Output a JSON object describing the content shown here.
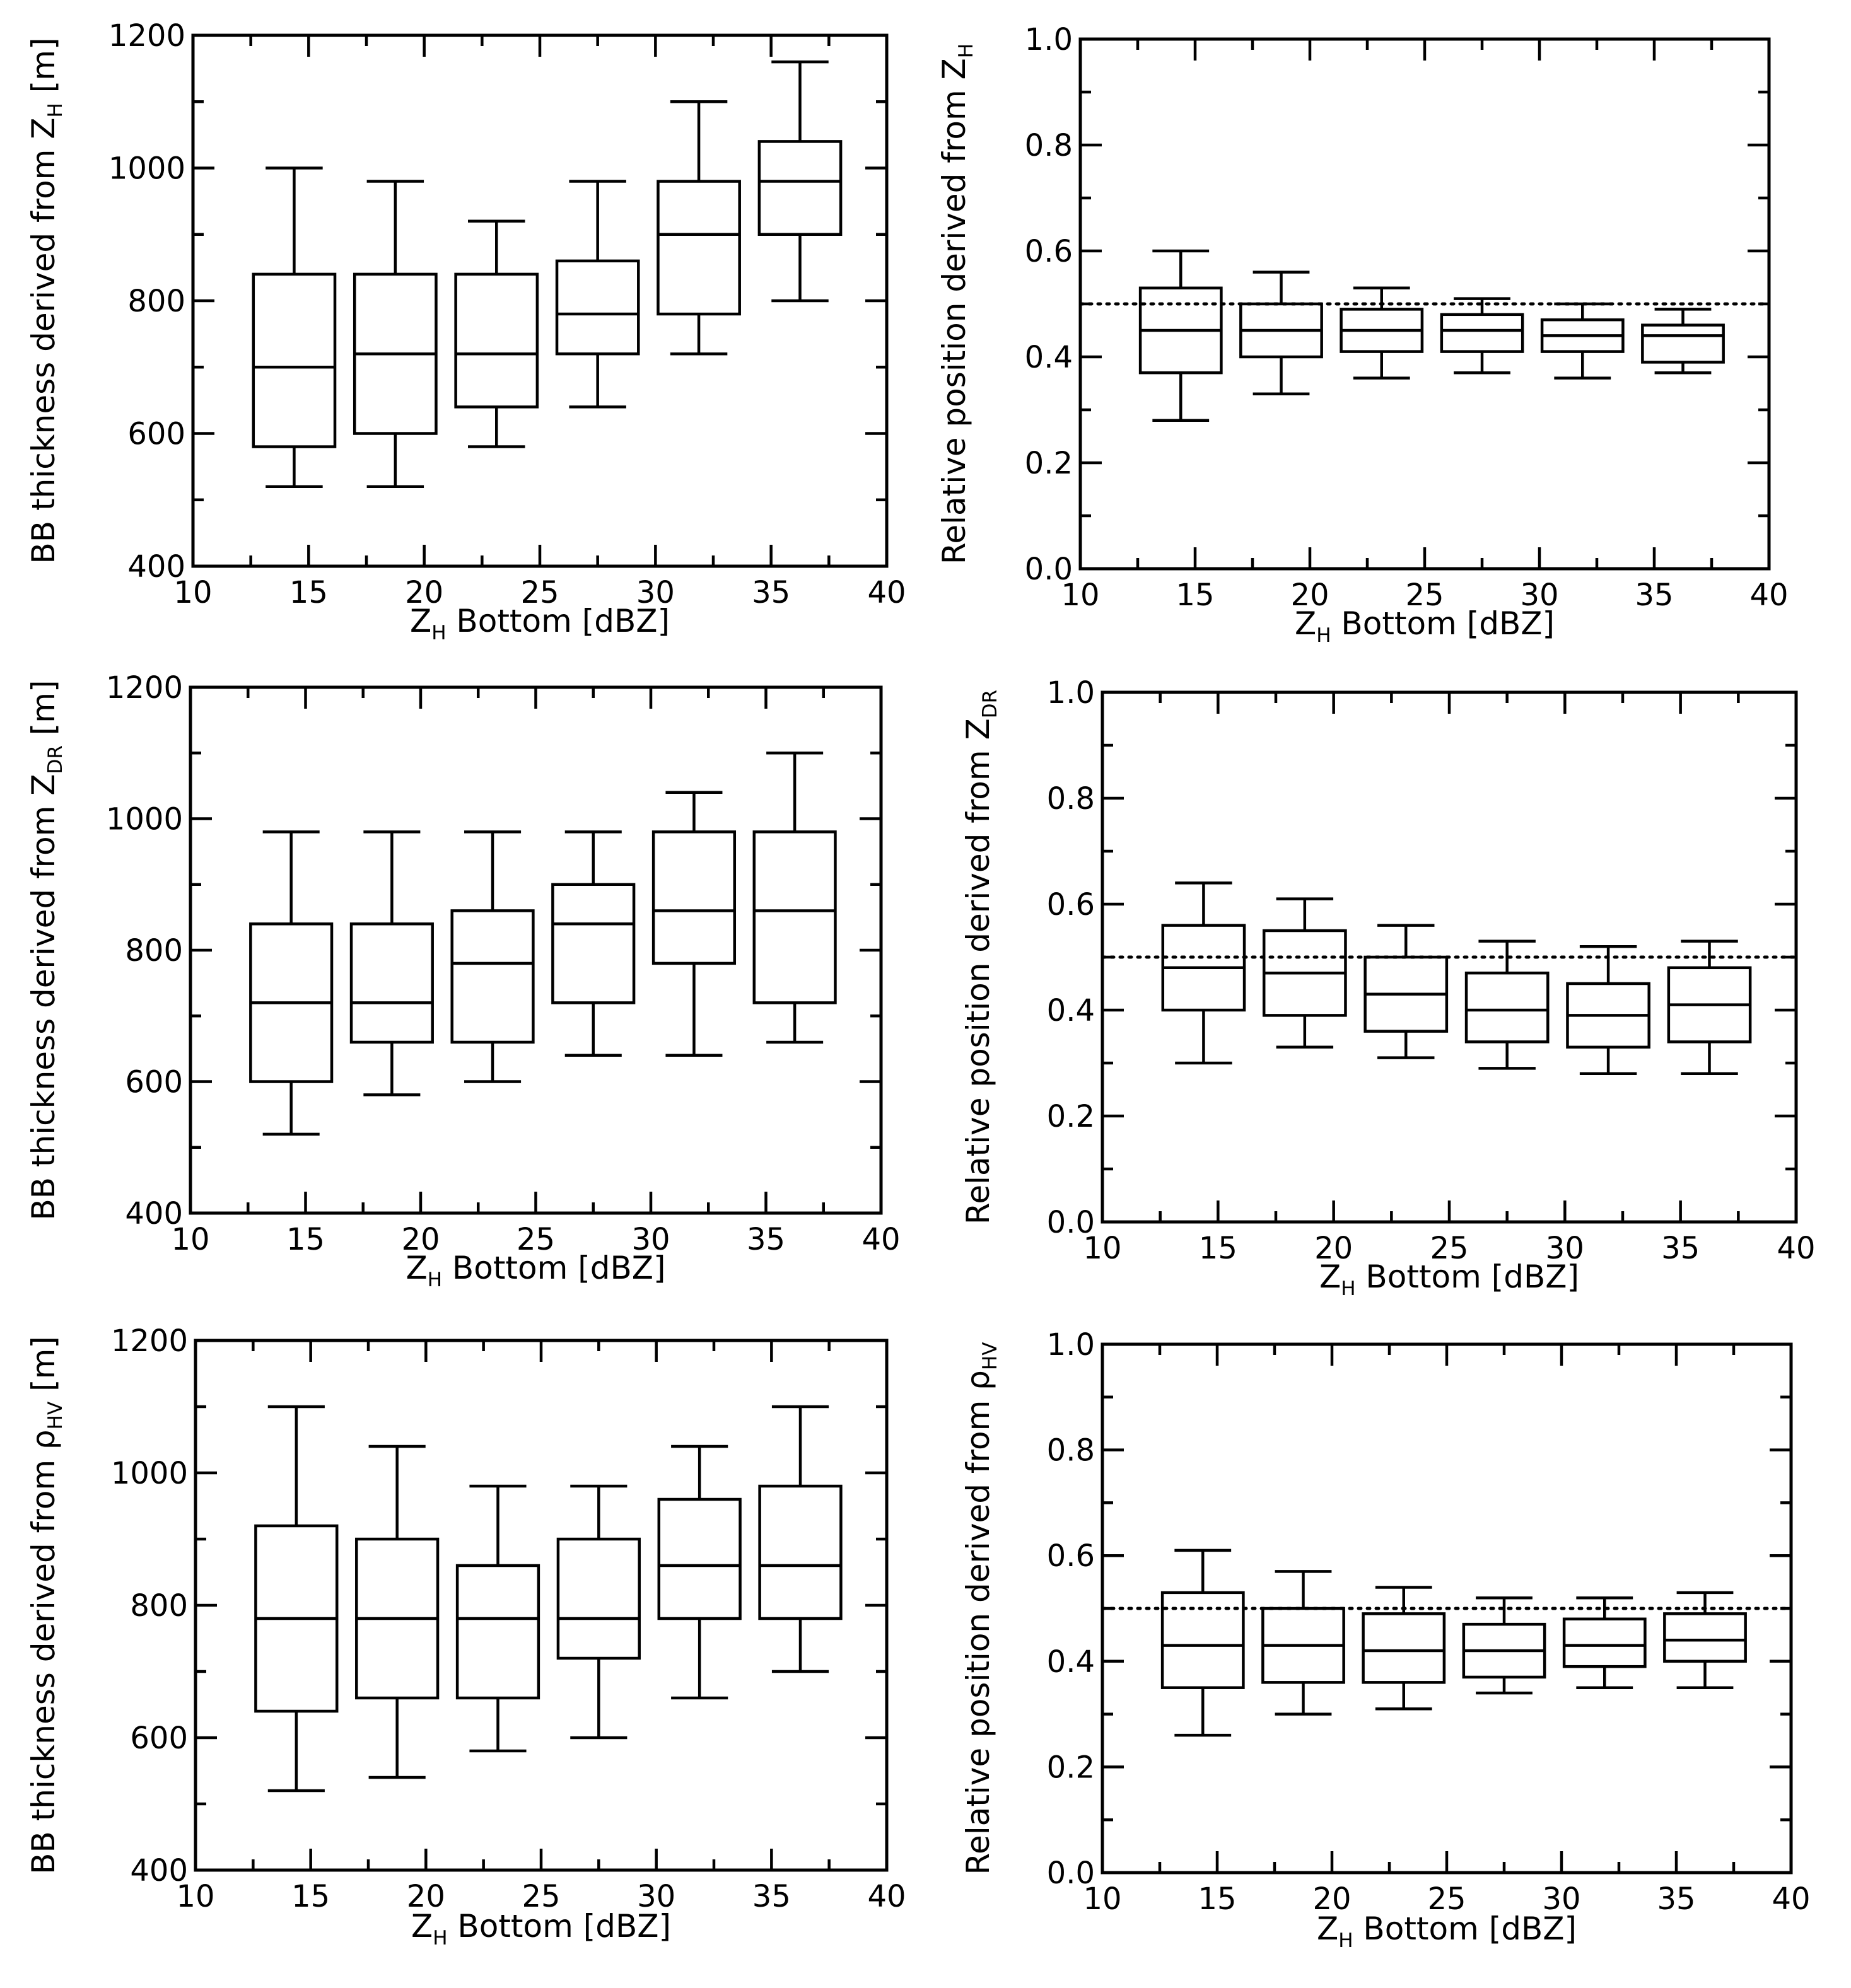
{
  "chart_data": [
    {
      "id": "bb-thickness-zh",
      "type": "boxplot",
      "xlabel": {
        "main": "Z",
        "sub": "H",
        "rest": " Bottom [dBZ]"
      },
      "ylabel": {
        "main": "BB thickness derived from Z",
        "sub": "H",
        "rest": " [m]"
      },
      "xlim": [
        10,
        40
      ],
      "ylim": [
        400,
        1200
      ],
      "xticks": [
        10,
        15,
        20,
        25,
        30,
        35,
        40
      ],
      "yticks": [
        400,
        600,
        800,
        1000,
        1200
      ],
      "xtick_labels": [
        "10",
        "15",
        "20",
        "25",
        "30",
        "35",
        "40"
      ],
      "ytick_labels": [
        "400",
        "600",
        "800",
        "1000",
        "1200"
      ],
      "y_minor_step": 100,
      "boxes": [
        {
          "x": 14.375,
          "whislo": 520,
          "q1": 580,
          "med": 700,
          "q3": 840,
          "whishi": 1000
        },
        {
          "x": 18.75,
          "whislo": 520,
          "q1": 600,
          "med": 720,
          "q3": 840,
          "whishi": 980
        },
        {
          "x": 23.125,
          "whislo": 580,
          "q1": 640,
          "med": 720,
          "q3": 840,
          "whishi": 920
        },
        {
          "x": 27.5,
          "whislo": 640,
          "q1": 720,
          "med": 780,
          "q3": 860,
          "whishi": 980
        },
        {
          "x": 31.875,
          "whislo": 720,
          "q1": 780,
          "med": 900,
          "q3": 980,
          "whishi": 1100
        },
        {
          "x": 36.25,
          "whislo": 800,
          "q1": 900,
          "med": 980,
          "q3": 1040,
          "whishi": 1160
        }
      ]
    },
    {
      "id": "relative-position-zh",
      "type": "boxplot",
      "xlabel": {
        "main": "Z",
        "sub": "H",
        "rest": " Bottom [dBZ]"
      },
      "ylabel": {
        "main": "Relative position derived from Z",
        "sub": "H",
        "rest": ""
      },
      "xlim": [
        10,
        40
      ],
      "ylim": [
        0.0,
        1.0
      ],
      "xticks": [
        10,
        15,
        20,
        25,
        30,
        35,
        40
      ],
      "yticks": [
        0.0,
        0.2,
        0.4,
        0.6,
        0.8,
        1.0
      ],
      "xtick_labels": [
        "10",
        "15",
        "20",
        "25",
        "30",
        "35",
        "40"
      ],
      "ytick_labels": [
        "0.0",
        "0.2",
        "0.4",
        "0.6",
        "0.8",
        "1.0"
      ],
      "y_minor_step": 0.1,
      "reference_line": 0.5,
      "boxes": [
        {
          "x": 14.375,
          "whislo": 0.28,
          "q1": 0.37,
          "med": 0.45,
          "q3": 0.53,
          "whishi": 0.6
        },
        {
          "x": 18.75,
          "whislo": 0.33,
          "q1": 0.4,
          "med": 0.45,
          "q3": 0.5,
          "whishi": 0.56
        },
        {
          "x": 23.125,
          "whislo": 0.36,
          "q1": 0.41,
          "med": 0.45,
          "q3": 0.49,
          "whishi": 0.53
        },
        {
          "x": 27.5,
          "whislo": 0.37,
          "q1": 0.41,
          "med": 0.45,
          "q3": 0.48,
          "whishi": 0.51
        },
        {
          "x": 31.875,
          "whislo": 0.36,
          "q1": 0.41,
          "med": 0.44,
          "q3": 0.47,
          "whishi": 0.5
        },
        {
          "x": 36.25,
          "whislo": 0.37,
          "q1": 0.39,
          "med": 0.44,
          "q3": 0.46,
          "whishi": 0.49
        }
      ]
    },
    {
      "id": "bb-thickness-zdr",
      "type": "boxplot",
      "xlabel": {
        "main": "Z",
        "sub": "H",
        "rest": " Bottom [dBZ]"
      },
      "ylabel": {
        "main": "BB thickness derived from Z",
        "sub": "DR",
        "rest": " [m]"
      },
      "xlim": [
        10,
        40
      ],
      "ylim": [
        400,
        1200
      ],
      "xticks": [
        10,
        15,
        20,
        25,
        30,
        35,
        40
      ],
      "yticks": [
        400,
        600,
        800,
        1000,
        1200
      ],
      "xtick_labels": [
        "10",
        "15",
        "20",
        "25",
        "30",
        "35",
        "40"
      ],
      "ytick_labels": [
        "400",
        "600",
        "800",
        "1000",
        "1200"
      ],
      "y_minor_step": 100,
      "boxes": [
        {
          "x": 14.375,
          "whislo": 520,
          "q1": 600,
          "med": 720,
          "q3": 840,
          "whishi": 980
        },
        {
          "x": 18.75,
          "whislo": 580,
          "q1": 660,
          "med": 720,
          "q3": 840,
          "whishi": 980
        },
        {
          "x": 23.125,
          "whislo": 600,
          "q1": 660,
          "med": 780,
          "q3": 860,
          "whishi": 980
        },
        {
          "x": 27.5,
          "whislo": 640,
          "q1": 720,
          "med": 840,
          "q3": 900,
          "whishi": 980
        },
        {
          "x": 31.875,
          "whislo": 640,
          "q1": 780,
          "med": 860,
          "q3": 980,
          "whishi": 1040
        },
        {
          "x": 36.25,
          "whislo": 660,
          "q1": 720,
          "med": 860,
          "q3": 980,
          "whishi": 1100
        }
      ]
    },
    {
      "id": "relative-position-zdr",
      "type": "boxplot",
      "xlabel": {
        "main": "Z",
        "sub": "H",
        "rest": " Bottom [dBZ]"
      },
      "ylabel": {
        "main": "Relative position derived from Z",
        "sub": "DR",
        "rest": ""
      },
      "xlim": [
        10,
        40
      ],
      "ylim": [
        0.0,
        1.0
      ],
      "xticks": [
        10,
        15,
        20,
        25,
        30,
        35,
        40
      ],
      "yticks": [
        0.0,
        0.2,
        0.4,
        0.6,
        0.8,
        1.0
      ],
      "xtick_labels": [
        "10",
        "15",
        "20",
        "25",
        "30",
        "35",
        "40"
      ],
      "ytick_labels": [
        "0.0",
        "0.2",
        "0.4",
        "0.6",
        "0.8",
        "1.0"
      ],
      "y_minor_step": 0.1,
      "reference_line": 0.5,
      "boxes": [
        {
          "x": 14.375,
          "whislo": 0.3,
          "q1": 0.4,
          "med": 0.48,
          "q3": 0.56,
          "whishi": 0.64
        },
        {
          "x": 18.75,
          "whislo": 0.33,
          "q1": 0.39,
          "med": 0.47,
          "q3": 0.55,
          "whishi": 0.61
        },
        {
          "x": 23.125,
          "whislo": 0.31,
          "q1": 0.36,
          "med": 0.43,
          "q3": 0.5,
          "whishi": 0.56
        },
        {
          "x": 27.5,
          "whislo": 0.29,
          "q1": 0.34,
          "med": 0.4,
          "q3": 0.47,
          "whishi": 0.53
        },
        {
          "x": 31.875,
          "whislo": 0.28,
          "q1": 0.33,
          "med": 0.39,
          "q3": 0.45,
          "whishi": 0.52
        },
        {
          "x": 36.25,
          "whislo": 0.28,
          "q1": 0.34,
          "med": 0.41,
          "q3": 0.48,
          "whishi": 0.53
        }
      ]
    },
    {
      "id": "bb-thickness-rhohv",
      "type": "boxplot",
      "xlabel": {
        "main": "Z",
        "sub": "H",
        "rest": " Bottom [dBZ]"
      },
      "ylabel": {
        "main": "BB thickness derived from ρ",
        "sub": "HV",
        "rest": " [m]"
      },
      "xlim": [
        10,
        40
      ],
      "ylim": [
        400,
        1200
      ],
      "xticks": [
        10,
        15,
        20,
        25,
        30,
        35,
        40
      ],
      "yticks": [
        400,
        600,
        800,
        1000,
        1200
      ],
      "xtick_labels": [
        "10",
        "15",
        "20",
        "25",
        "30",
        "35",
        "40"
      ],
      "ytick_labels": [
        "400",
        "600",
        "800",
        "1000",
        "1200"
      ],
      "y_minor_step": 100,
      "boxes": [
        {
          "x": 14.375,
          "whislo": 520,
          "q1": 640,
          "med": 780,
          "q3": 920,
          "whishi": 1100
        },
        {
          "x": 18.75,
          "whislo": 540,
          "q1": 660,
          "med": 780,
          "q3": 900,
          "whishi": 1040
        },
        {
          "x": 23.125,
          "whislo": 580,
          "q1": 660,
          "med": 780,
          "q3": 860,
          "whishi": 980
        },
        {
          "x": 27.5,
          "whislo": 600,
          "q1": 720,
          "med": 780,
          "q3": 900,
          "whishi": 980
        },
        {
          "x": 31.875,
          "whislo": 660,
          "q1": 780,
          "med": 860,
          "q3": 960,
          "whishi": 1040
        },
        {
          "x": 36.25,
          "whislo": 700,
          "q1": 780,
          "med": 860,
          "q3": 980,
          "whishi": 1100
        }
      ]
    },
    {
      "id": "relative-position-rhohv",
      "type": "boxplot",
      "xlabel": {
        "main": "Z",
        "sub": "H",
        "rest": " Bottom [dBZ]"
      },
      "ylabel": {
        "main": "Relative position derived from ρ",
        "sub": "HV",
        "rest": ""
      },
      "xlim": [
        10,
        40
      ],
      "ylim": [
        0.0,
        1.0
      ],
      "xticks": [
        10,
        15,
        20,
        25,
        30,
        35,
        40
      ],
      "yticks": [
        0.0,
        0.2,
        0.4,
        0.6,
        0.8,
        1.0
      ],
      "xtick_labels": [
        "10",
        "15",
        "20",
        "25",
        "30",
        "35",
        "40"
      ],
      "ytick_labels": [
        "0.0",
        "0.2",
        "0.4",
        "0.6",
        "0.8",
        "1.0"
      ],
      "y_minor_step": 0.1,
      "reference_line": 0.5,
      "boxes": [
        {
          "x": 14.375,
          "whislo": 0.26,
          "q1": 0.35,
          "med": 0.43,
          "q3": 0.53,
          "whishi": 0.61
        },
        {
          "x": 18.75,
          "whislo": 0.3,
          "q1": 0.36,
          "med": 0.43,
          "q3": 0.5,
          "whishi": 0.57
        },
        {
          "x": 23.125,
          "whislo": 0.31,
          "q1": 0.36,
          "med": 0.42,
          "q3": 0.49,
          "whishi": 0.54
        },
        {
          "x": 27.5,
          "whislo": 0.34,
          "q1": 0.37,
          "med": 0.42,
          "q3": 0.47,
          "whishi": 0.52
        },
        {
          "x": 31.875,
          "whislo": 0.35,
          "q1": 0.39,
          "med": 0.43,
          "q3": 0.48,
          "whishi": 0.52
        },
        {
          "x": 36.25,
          "whislo": 0.35,
          "q1": 0.4,
          "med": 0.44,
          "q3": 0.49,
          "whishi": 0.53
        }
      ]
    }
  ]
}
